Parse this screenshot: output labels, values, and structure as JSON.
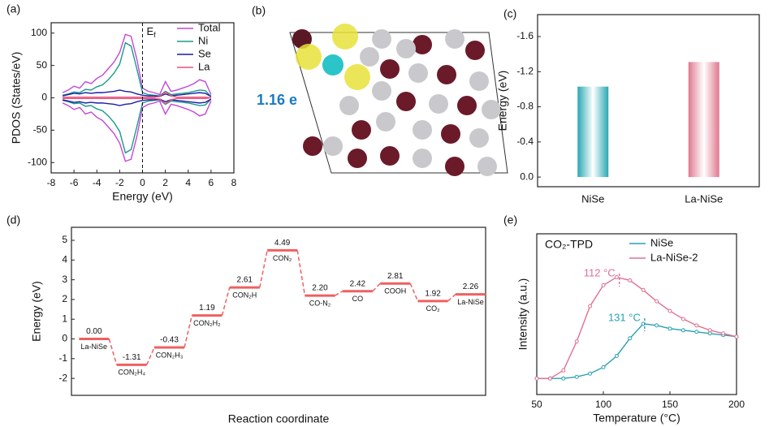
{
  "chart_data": [
    {
      "type": "line",
      "label": "(a)",
      "xlabel": "Energy (eV)",
      "ylabel": "PDOS (States/eV)",
      "xlim": [
        -8,
        8
      ],
      "ylim": [
        -116,
        116
      ],
      "xticks": [
        -8,
        -6,
        -4,
        -2,
        0,
        2,
        4,
        6,
        8
      ],
      "yticks": [
        -100,
        -50,
        0,
        50,
        100
      ],
      "x": [
        -7,
        -6.5,
        -6,
        -5.5,
        -5,
        -4.5,
        -4,
        -3.5,
        -3,
        -2.5,
        -2,
        -1.5,
        -1,
        -0.5,
        0,
        0.5,
        1,
        1.5,
        2,
        2.5,
        3,
        3.5,
        4,
        4.5,
        5,
        5.5,
        6
      ],
      "series": [
        {
          "name": "Total",
          "color": "#c447d8",
          "values": [
            8,
            12,
            18,
            15,
            25,
            22,
            30,
            35,
            45,
            55,
            70,
            98,
            95,
            60,
            15,
            10,
            8,
            5,
            25,
            10,
            12,
            15,
            18,
            22,
            28,
            25,
            5
          ],
          "values_down": [
            -8,
            -12,
            -18,
            -15,
            -25,
            -22,
            -30,
            -35,
            -45,
            -55,
            -70,
            -98,
            -95,
            -60,
            -15,
            -10,
            -8,
            -5,
            -25,
            -10,
            -12,
            -15,
            -18,
            -22,
            -28,
            -25,
            -5
          ]
        },
        {
          "name": "Ni",
          "color": "#1a9a8a",
          "values": [
            4,
            6,
            9,
            8,
            13,
            12,
            17,
            20,
            28,
            38,
            52,
            85,
            80,
            45,
            8,
            5,
            4,
            3,
            10,
            5,
            6,
            7,
            8,
            10,
            12,
            11,
            2
          ],
          "values_down": [
            -4,
            -6,
            -9,
            -8,
            -13,
            -12,
            -17,
            -20,
            -28,
            -38,
            -52,
            -85,
            -80,
            -45,
            -8,
            -5,
            -4,
            -3,
            -10,
            -5,
            -6,
            -7,
            -8,
            -10,
            -12,
            -11,
            -2
          ]
        },
        {
          "name": "Se",
          "color": "#1c1ca6",
          "values": [
            3,
            5,
            7,
            6,
            8,
            7,
            8,
            8,
            9,
            10,
            12,
            10,
            9,
            6,
            4,
            3,
            3,
            2,
            6,
            3,
            4,
            5,
            6,
            7,
            8,
            7,
            2
          ],
          "values_down": [
            -3,
            -5,
            -7,
            -6,
            -8,
            -7,
            -8,
            -8,
            -9,
            -10,
            -12,
            -10,
            -9,
            -6,
            -4,
            -3,
            -3,
            -2,
            -6,
            -3,
            -4,
            -5,
            -6,
            -7,
            -8,
            -7,
            -2
          ]
        },
        {
          "name": "La",
          "color": "#ec4f7c",
          "values": [
            1,
            1,
            1,
            1,
            1,
            1,
            1,
            1,
            1,
            1,
            1,
            1,
            1,
            1,
            1,
            1,
            1,
            2,
            9,
            3,
            1,
            1,
            1,
            1,
            1,
            1,
            0
          ],
          "values_down": [
            -1,
            -1,
            -1,
            -1,
            -1,
            -1,
            -1,
            -1,
            -1,
            -1,
            -1,
            -1,
            -1,
            -1,
            -1,
            -1,
            -1,
            -2,
            -9,
            -3,
            -1,
            -1,
            -1,
            -1,
            -1,
            -1,
            0
          ]
        }
      ],
      "annotations": [
        {
          "text": "E",
          "subscript": "f",
          "x": 0
        }
      ],
      "legend": "upper right"
    },
    {
      "type": "bar",
      "label": "(c)",
      "ylabel": "Energy (eV)",
      "categories": [
        "NiSe",
        "La-NiSe"
      ],
      "values": [
        -1.03,
        -1.31
      ],
      "colors": [
        "#2aa8b4",
        "#e07890"
      ],
      "ylim": [
        0.11,
        -1.85
      ],
      "yticks": [
        {
          "value": 0,
          "label": "0.0"
        },
        -0.4,
        -0.8,
        -1.2,
        -1.6
      ]
    },
    {
      "type": "step",
      "label": "(d)",
      "xlabel": "Reaction coordinate",
      "ylabel": "Energy (eV)",
      "ylim": [
        -2.86,
        5.66
      ],
      "yticks": [
        -2,
        -1,
        0,
        1,
        2,
        3,
        4,
        5
      ],
      "color": "#f06060",
      "categories": [
        "La-NiSe",
        "CON₂H₄",
        "CON₂H₃",
        "CON₂H₂",
        "CON₂H",
        "CON₂",
        "CO-N₂",
        "CO",
        "COOH",
        "CO₂",
        "La-NiSe"
      ],
      "values": [
        0,
        -1.31,
        -0.43,
        1.19,
        2.61,
        4.49,
        2.2,
        2.42,
        2.81,
        1.92,
        2.26
      ],
      "value_labels": [
        "0.00",
        "-1.31",
        "-0.43",
        "1.19",
        "2.61",
        "4.49",
        "2.20",
        "2.42",
        "2.81",
        "1.92",
        "2.26"
      ]
    },
    {
      "type": "line",
      "label": "(e)",
      "title": "CO₂-TPD",
      "xlabel": "Temperature (°C)",
      "ylabel": "Intensity (a.u.)",
      "xlim": [
        50,
        200
      ],
      "ylim": [
        0,
        1
      ],
      "xticks": [
        50,
        100,
        150,
        200
      ],
      "x": [
        50,
        60,
        70,
        80,
        90,
        100,
        110,
        120,
        130,
        140,
        150,
        160,
        170,
        180,
        190,
        200
      ],
      "series": [
        {
          "name": "NiSe",
          "color": "#2aa0b0",
          "values": [
            0.1,
            0.1,
            0.1,
            0.11,
            0.13,
            0.17,
            0.24,
            0.35,
            0.44,
            0.43,
            0.41,
            0.4,
            0.39,
            0.38,
            0.37,
            0.36
          ]
        },
        {
          "name": "La-NiSe-2",
          "color": "#e07090",
          "values": [
            0.1,
            0.1,
            0.15,
            0.33,
            0.55,
            0.68,
            0.73,
            0.71,
            0.65,
            0.58,
            0.52,
            0.47,
            0.43,
            0.4,
            0.38,
            0.36
          ]
        }
      ],
      "annotations": [
        {
          "text": "112 °C",
          "x": 112,
          "color": "#e07090"
        },
        {
          "text": "131 °C",
          "x": 131,
          "color": "#2aa0b0"
        }
      ],
      "legend": "upper right"
    }
  ],
  "structure_panel": {
    "label": "(b)",
    "annotation": "1.16 e"
  }
}
